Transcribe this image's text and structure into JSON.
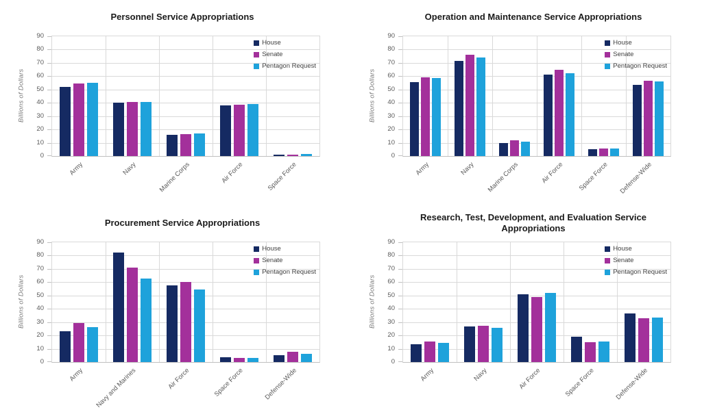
{
  "page": {
    "background": "#ffffff"
  },
  "palette": {
    "House": "#152A62",
    "Senate": "#A3309B",
    "Pentagon Request": "#1EA2DB"
  },
  "colors": {
    "gridline": "#D9D9D9",
    "axis_line": "#BFBFBF",
    "tick_text": "#595959",
    "title_text": "#1A1A1A",
    "y_axis_title_text": "#7A7A7A",
    "legend_text": "#404040"
  },
  "legend": {
    "position": "top-right",
    "items": [
      "House",
      "Senate",
      "Pentagon Request"
    ]
  },
  "chart_data": [
    {
      "type": "bar",
      "title": "Personnel Service Appropriations",
      "ylabel": "Billions of Dollars",
      "xlabel": "",
      "ylim": [
        0,
        90
      ],
      "ytick_step": 10,
      "grid": true,
      "legend_position": "top-right",
      "categories": [
        "Army",
        "Navy",
        "Marine Corps",
        "Air Force",
        "Space Force"
      ],
      "series": [
        {
          "name": "House",
          "values": [
            52,
            40,
            16,
            38,
            1
          ]
        },
        {
          "name": "Senate",
          "values": [
            54.5,
            40.5,
            16.6,
            38.8,
            1.3
          ]
        },
        {
          "name": "Pentagon Request",
          "values": [
            55,
            40.5,
            17.1,
            39.2,
            1.4
          ]
        }
      ]
    },
    {
      "type": "bar",
      "title": "Operation and Maintenance Service Appropriations",
      "ylabel": "Billions of Dollars",
      "xlabel": "",
      "ylim": [
        0,
        90
      ],
      "ytick_step": 10,
      "grid": true,
      "legend_position": "top-right",
      "categories": [
        "Army",
        "Navy",
        "Marine Corps",
        "Air Force",
        "Space Force",
        "Defense-Wide"
      ],
      "series": [
        {
          "name": "House",
          "values": [
            55.8,
            71.7,
            10,
            61,
            5,
            53.5
          ]
        },
        {
          "name": "Senate",
          "values": [
            59,
            76,
            11.7,
            64.8,
            5.9,
            56.6
          ]
        },
        {
          "name": "Pentagon Request",
          "values": [
            58.7,
            74,
            11,
            62,
            5.7,
            55.9
          ]
        }
      ]
    },
    {
      "type": "bar",
      "title": "Procurement Service Appropriations",
      "ylabel": "Billions of Dollars",
      "xlabel": "",
      "ylim": [
        0,
        90
      ],
      "ytick_step": 10,
      "grid": true,
      "legend_position": "top-right",
      "categories": [
        "Army",
        "Navy and Marines",
        "Air Force",
        "Space Force",
        "Defense-Wide"
      ],
      "series": [
        {
          "name": "House",
          "values": [
            23,
            82.3,
            57.6,
            3.7,
            5.3
          ]
        },
        {
          "name": "Senate",
          "values": [
            29.2,
            70.8,
            60,
            3.2,
            7.8
          ]
        },
        {
          "name": "Pentagon Request",
          "values": [
            26.2,
            63,
            54.3,
            3.3,
            6.3
          ]
        }
      ]
    },
    {
      "type": "bar",
      "title": "Research, Test, Development, and Evaluation Service Appropriations",
      "ylabel": "Billions of Dollars",
      "xlabel": "",
      "ylim": [
        0,
        90
      ],
      "ytick_step": 10,
      "grid": true,
      "legend_position": "top-right",
      "categories": [
        "Army",
        "Navy",
        "Air Force",
        "Space Force",
        "Defense-Wide"
      ],
      "series": [
        {
          "name": "House",
          "values": [
            13.4,
            27,
            51,
            19,
            36.4
          ]
        },
        {
          "name": "Senate",
          "values": [
            15.2,
            27.5,
            49,
            14.7,
            33
          ]
        },
        {
          "name": "Pentagon Request",
          "values": [
            14.3,
            25.8,
            52,
            15.2,
            33.5
          ]
        }
      ]
    }
  ]
}
